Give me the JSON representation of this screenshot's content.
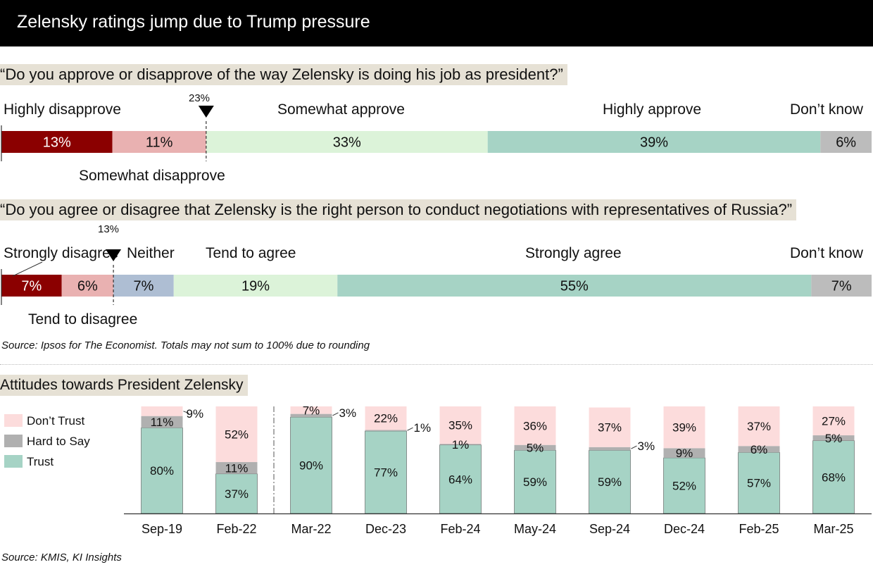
{
  "title": "Zelensky ratings jump due to Trump pressure",
  "colors": {
    "strong_neg": "#8b0000",
    "mild_neg": "#e9b1b1",
    "neither": "#aebed3",
    "mild_pos": "#dcf3d9",
    "strong_pos": "#a6d3c5",
    "dont_know": "#bcbcbc",
    "dont_trust": "#fcdcdc",
    "hard_to_say": "#b0b0b0",
    "trust": "#a6d3c5"
  },
  "q1": {
    "question": "“Do you approve or disapprove of the way Zelensky is doing his job as president?”",
    "marker": "23%",
    "labels": {
      "highly_disapprove": "Highly disapprove",
      "somewhat_approve": "Somewhat approve",
      "highly_approve": "Highly approve",
      "dont_know": "Don’t know",
      "somewhat_disapprove": "Somewhat disapprove"
    },
    "values": [
      13,
      11,
      33,
      39,
      6
    ],
    "value_labels": [
      "13%",
      "11%",
      "33%",
      "39%",
      "6%"
    ]
  },
  "q2": {
    "question": "“Do you agree or disagree that Zelensky is the right person to conduct negotiations with representatives of Russia?”",
    "marker": "13%",
    "labels": {
      "strongly_disagree": "Strongly disagree",
      "neither": "Neither",
      "tend_to_agree": "Tend to agree",
      "strongly_agree": "Strongly agree",
      "dont_know": "Don’t know",
      "tend_to_disagree": "Tend to disagree"
    },
    "values": [
      7,
      6,
      7,
      19,
      55,
      7
    ],
    "value_labels": [
      "7%",
      "6%",
      "7%",
      "19%",
      "55%",
      "7%"
    ]
  },
  "source1": "Source: Ipsos for The Economist. Totals may not sum to 100% due to rounding",
  "section2_title": "Attitudes towards President Zelensky",
  "legend": {
    "dont_trust": "Don’t Trust",
    "hard_to_say": "Hard to Say",
    "trust": "Trust"
  },
  "chart_data": {
    "type": "bar",
    "stacked": true,
    "title": "Attitudes towards President Zelensky",
    "categories": [
      "Sep-19",
      "Feb-22",
      "Mar-22",
      "Dec-23",
      "Feb-24",
      "May-24",
      "Sep-24",
      "Dec-24",
      "Feb-25",
      "Mar-25"
    ],
    "series": [
      {
        "name": "Trust",
        "values": [
          80,
          37,
          90,
          77,
          64,
          59,
          59,
          52,
          57,
          68
        ]
      },
      {
        "name": "Hard to Say",
        "values": [
          11,
          11,
          3,
          1,
          1,
          5,
          3,
          9,
          6,
          5
        ]
      },
      {
        "name": "Don’t Trust",
        "values": [
          9,
          52,
          7,
          22,
          35,
          36,
          37,
          39,
          37,
          27
        ]
      }
    ],
    "ylim": [
      0,
      100
    ]
  },
  "source2": "Source: KMIS, KI Insights"
}
